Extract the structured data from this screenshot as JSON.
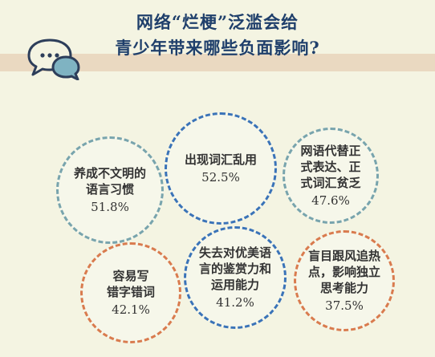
{
  "title": {
    "line1": "网络“烂梗”泛滥会给",
    "line2": "青少年带来哪些负面影响?"
  },
  "icon": "speech-bubbles-icon",
  "colors": {
    "background": "#f4f4e2",
    "title": "#1f3f6b",
    "band": "#ead9c1",
    "blue": "#3a73b8",
    "teal": "#78a4ad",
    "orange": "#d97b4e"
  },
  "items": [
    {
      "label": "出现词汇乱用",
      "value": "52.5%"
    },
    {
      "label": "养成不文明的\n语言习惯",
      "value": "51.8%"
    },
    {
      "label": "网语代替正\n式表达、正\n式词汇贫乏",
      "value": "47.6%"
    },
    {
      "label": "容易写\n错字错词",
      "value": "42.1%"
    },
    {
      "label": "失去对优美语\n言的鉴赏力和\n运用能力",
      "value": "41.2%"
    },
    {
      "label": "盲目跟风追热\n点，影响独立\n思考能力",
      "value": "37.5%"
    }
  ]
}
